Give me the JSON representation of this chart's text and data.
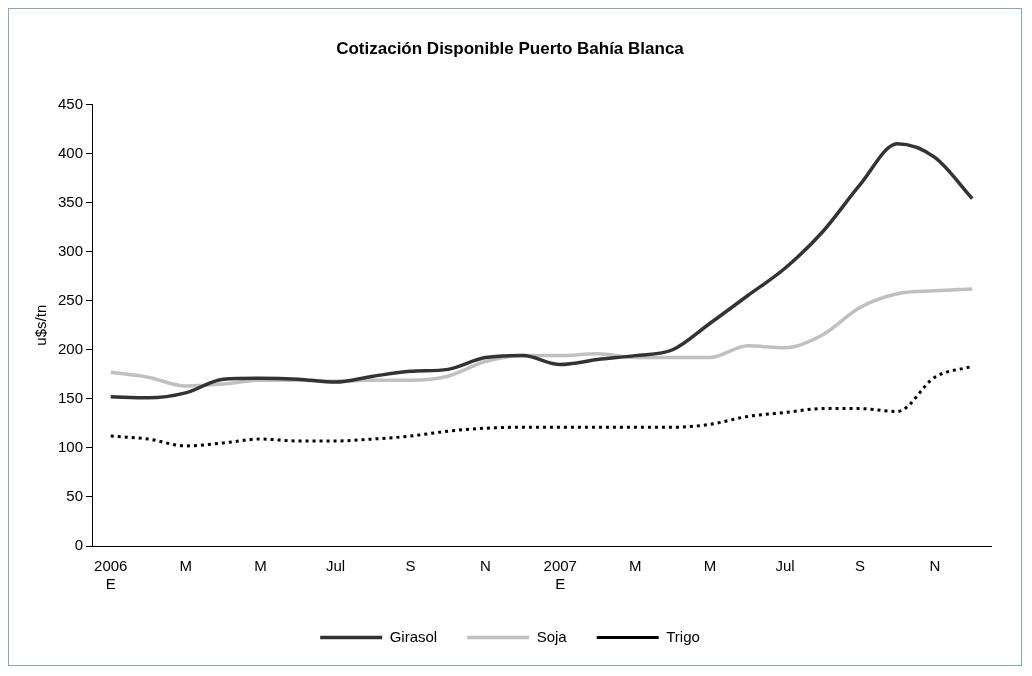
{
  "chart_data": {
    "type": "line",
    "title": "Cotización Disponible Puerto Bahía Blanca",
    "ylabel": "u$s/tn",
    "categories": [
      "2006\nE",
      null,
      "M",
      null,
      "M",
      null,
      "Jul",
      null,
      "S",
      null,
      "N",
      null,
      "2007\nE",
      null,
      "M",
      null,
      "M",
      null,
      "Jul",
      null,
      "S",
      null,
      "N",
      null
    ],
    "series": [
      {
        "name": "Girasol",
        "color": "#333333",
        "line_style": "solid",
        "values": [
          152,
          151,
          156,
          170,
          171,
          170,
          167,
          173,
          178,
          180,
          192,
          194,
          185,
          190,
          194,
          200,
          227,
          255,
          283,
          320,
          368,
          410,
          396,
          354
        ]
      },
      {
        "name": "Soja",
        "color": "#c0c0c0",
        "line_style": "solid",
        "values": [
          177,
          172,
          163,
          165,
          169,
          169,
          168,
          169,
          169,
          173,
          188,
          194,
          194,
          196,
          192,
          192,
          192,
          204,
          202,
          215,
          243,
          257,
          260,
          262
        ]
      },
      {
        "name": "Trigo",
        "color": "#000000",
        "line_style": "dotted",
        "values": [
          112,
          109,
          102,
          105,
          109,
          107,
          107,
          109,
          112,
          117,
          120,
          121,
          121,
          121,
          121,
          121,
          124,
          132,
          136,
          140,
          140,
          137,
          172,
          183
        ]
      }
    ],
    "ylim": [
      0,
      450
    ],
    "yticks": [
      0,
      50,
      100,
      150,
      200,
      250,
      300,
      350,
      400,
      450
    ],
    "grid": false,
    "legend": "bottom",
    "marker": "none"
  }
}
